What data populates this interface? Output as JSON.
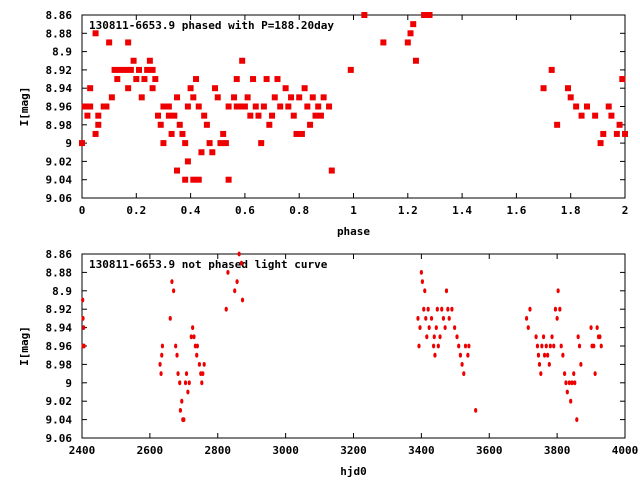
{
  "chart_data": [
    {
      "type": "scatter",
      "title": "130811-6653.9 phased with P=188.20day",
      "xlabel": "phase",
      "ylabel": "I[mag]",
      "xlim": [
        0,
        2
      ],
      "ylim": [
        9.06,
        8.86
      ],
      "y_inverted": true,
      "xticks": [
        "0",
        "0.2",
        "0.4",
        "0.6",
        "0.8",
        "1",
        "1.2",
        "1.4",
        "1.6",
        "1.8",
        "2"
      ],
      "yticks": [
        "8.86",
        "8.88",
        "8.9",
        "8.92",
        "8.94",
        "8.96",
        "8.98",
        "9",
        "9.02",
        "9.04",
        "9.06"
      ],
      "marker_color": "#ee0000",
      "grid": false,
      "points": [
        [
          0.0,
          9.0
        ],
        [
          0.01,
          8.96
        ],
        [
          0.02,
          8.97
        ],
        [
          0.03,
          8.94
        ],
        [
          0.03,
          8.96
        ],
        [
          0.05,
          8.99
        ],
        [
          0.05,
          8.88
        ],
        [
          0.06,
          8.97
        ],
        [
          0.06,
          8.98
        ],
        [
          0.08,
          8.96
        ],
        [
          0.09,
          8.96
        ],
        [
          0.1,
          8.89
        ],
        [
          0.11,
          8.95
        ],
        [
          0.12,
          8.92
        ],
        [
          0.13,
          8.93
        ],
        [
          0.14,
          8.92
        ],
        [
          0.16,
          8.92
        ],
        [
          0.17,
          8.94
        ],
        [
          0.17,
          8.89
        ],
        [
          0.18,
          8.92
        ],
        [
          0.19,
          8.91
        ],
        [
          0.2,
          8.93
        ],
        [
          0.21,
          8.92
        ],
        [
          0.22,
          8.95
        ],
        [
          0.23,
          8.93
        ],
        [
          0.24,
          8.92
        ],
        [
          0.25,
          8.91
        ],
        [
          0.26,
          8.92
        ],
        [
          0.26,
          8.94
        ],
        [
          0.27,
          8.93
        ],
        [
          0.28,
          8.97
        ],
        [
          0.29,
          8.98
        ],
        [
          0.3,
          8.96
        ],
        [
          0.3,
          9.0
        ],
        [
          0.32,
          8.96
        ],
        [
          0.32,
          8.97
        ],
        [
          0.33,
          8.99
        ],
        [
          0.34,
          8.97
        ],
        [
          0.35,
          8.95
        ],
        [
          0.35,
          9.03
        ],
        [
          0.36,
          8.98
        ],
        [
          0.37,
          8.99
        ],
        [
          0.38,
          9.04
        ],
        [
          0.38,
          9.0
        ],
        [
          0.39,
          9.02
        ],
        [
          0.39,
          8.96
        ],
        [
          0.4,
          8.94
        ],
        [
          0.41,
          8.95
        ],
        [
          0.41,
          9.04
        ],
        [
          0.42,
          8.93
        ],
        [
          0.43,
          8.96
        ],
        [
          0.43,
          9.04
        ],
        [
          0.44,
          9.01
        ],
        [
          0.45,
          8.97
        ],
        [
          0.46,
          8.98
        ],
        [
          0.47,
          9.0
        ],
        [
          0.48,
          9.01
        ],
        [
          0.49,
          8.94
        ],
        [
          0.5,
          8.95
        ],
        [
          0.51,
          9.0
        ],
        [
          0.52,
          8.99
        ],
        [
          0.53,
          9.0
        ],
        [
          0.54,
          8.96
        ],
        [
          0.54,
          9.04
        ],
        [
          0.56,
          8.95
        ],
        [
          0.57,
          8.96
        ],
        [
          0.57,
          8.93
        ],
        [
          0.58,
          8.96
        ],
        [
          0.59,
          8.91
        ],
        [
          0.6,
          8.96
        ],
        [
          0.61,
          8.95
        ],
        [
          0.62,
          8.97
        ],
        [
          0.63,
          8.93
        ],
        [
          0.64,
          8.96
        ],
        [
          0.65,
          8.97
        ],
        [
          0.66,
          9.0
        ],
        [
          0.67,
          8.96
        ],
        [
          0.68,
          8.93
        ],
        [
          0.69,
          8.98
        ],
        [
          0.7,
          8.97
        ],
        [
          0.71,
          8.95
        ],
        [
          0.72,
          8.93
        ],
        [
          0.73,
          8.96
        ],
        [
          0.75,
          8.94
        ],
        [
          0.76,
          8.96
        ],
        [
          0.77,
          8.95
        ],
        [
          0.78,
          8.97
        ],
        [
          0.79,
          8.99
        ],
        [
          0.8,
          8.95
        ],
        [
          0.81,
          8.99
        ],
        [
          0.82,
          8.94
        ],
        [
          0.83,
          8.96
        ],
        [
          0.84,
          8.98
        ],
        [
          0.85,
          8.95
        ],
        [
          0.86,
          8.97
        ],
        [
          0.87,
          8.96
        ],
        [
          0.88,
          8.97
        ],
        [
          0.89,
          8.95
        ],
        [
          0.91,
          8.96
        ],
        [
          0.92,
          9.03
        ],
        [
          0.99,
          8.92
        ],
        [
          1.04,
          8.86
        ],
        [
          1.11,
          8.89
        ],
        [
          1.2,
          8.89
        ],
        [
          1.21,
          8.88
        ],
        [
          1.22,
          8.87
        ],
        [
          1.23,
          8.91
        ],
        [
          1.26,
          8.86
        ],
        [
          1.28,
          8.86
        ],
        [
          1.7,
          8.94
        ],
        [
          1.73,
          8.92
        ],
        [
          1.75,
          8.98
        ],
        [
          1.79,
          8.94
        ],
        [
          1.8,
          8.95
        ],
        [
          1.82,
          8.96
        ],
        [
          1.84,
          8.97
        ],
        [
          1.86,
          8.96
        ],
        [
          1.89,
          8.97
        ],
        [
          1.91,
          9.0
        ],
        [
          1.92,
          8.99
        ],
        [
          1.94,
          8.96
        ],
        [
          1.95,
          8.97
        ],
        [
          1.97,
          8.99
        ],
        [
          1.98,
          8.98
        ],
        [
          1.99,
          8.93
        ],
        [
          2.0,
          8.99
        ]
      ]
    },
    {
      "type": "scatter",
      "title": "130811-6653.9 not phased light curve",
      "xlabel": "hjd0",
      "ylabel": "I[mag]",
      "xlim": [
        2400,
        4000
      ],
      "ylim": [
        9.06,
        8.86
      ],
      "y_inverted": true,
      "xticks": [
        "2400",
        "2600",
        "2800",
        "3000",
        "3200",
        "3400",
        "3600",
        "3800",
        "4000"
      ],
      "yticks": [
        "8.86",
        "8.88",
        "8.9",
        "8.92",
        "8.94",
        "8.96",
        "8.98",
        "9",
        "9.02",
        "9.04",
        "9.06"
      ],
      "marker_color": "#ee0000",
      "grid": false,
      "points": [
        [
          2402,
          8.91
        ],
        [
          2403,
          8.93
        ],
        [
          2403,
          8.96
        ],
        [
          2405,
          8.94
        ],
        [
          2406,
          8.96
        ],
        [
          2630,
          8.98
        ],
        [
          2633,
          8.99
        ],
        [
          2635,
          8.97
        ],
        [
          2637,
          8.96
        ],
        [
          2660,
          8.93
        ],
        [
          2665,
          8.89
        ],
        [
          2670,
          8.9
        ],
        [
          2676,
          8.96
        ],
        [
          2680,
          8.97
        ],
        [
          2683,
          8.99
        ],
        [
          2688,
          9.0
        ],
        [
          2690,
          9.03
        ],
        [
          2694,
          9.02
        ],
        [
          2697,
          9.04
        ],
        [
          2700,
          9.04
        ],
        [
          2705,
          9.0
        ],
        [
          2708,
          8.99
        ],
        [
          2712,
          9.01
        ],
        [
          2716,
          9.0
        ],
        [
          2722,
          8.95
        ],
        [
          2726,
          8.94
        ],
        [
          2730,
          8.95
        ],
        [
          2734,
          8.96
        ],
        [
          2738,
          8.97
        ],
        [
          2740,
          8.96
        ],
        [
          2746,
          8.98
        ],
        [
          2750,
          8.99
        ],
        [
          2753,
          9.0
        ],
        [
          2756,
          8.99
        ],
        [
          2760,
          8.98
        ],
        [
          2825,
          8.92
        ],
        [
          2830,
          8.88
        ],
        [
          2850,
          8.9
        ],
        [
          2857,
          8.89
        ],
        [
          2863,
          8.86
        ],
        [
          2870,
          8.87
        ],
        [
          2873,
          8.91
        ],
        [
          3390,
          8.93
        ],
        [
          3393,
          8.96
        ],
        [
          3396,
          8.94
        ],
        [
          3400,
          8.88
        ],
        [
          3403,
          8.89
        ],
        [
          3407,
          8.92
        ],
        [
          3410,
          8.9
        ],
        [
          3413,
          8.93
        ],
        [
          3416,
          8.95
        ],
        [
          3420,
          8.92
        ],
        [
          3423,
          8.94
        ],
        [
          3430,
          8.93
        ],
        [
          3436,
          8.96
        ],
        [
          3438,
          8.95
        ],
        [
          3440,
          8.97
        ],
        [
          3444,
          8.94
        ],
        [
          3447,
          8.92
        ],
        [
          3450,
          8.96
        ],
        [
          3455,
          8.95
        ],
        [
          3460,
          8.92
        ],
        [
          3465,
          8.93
        ],
        [
          3470,
          8.94
        ],
        [
          3474,
          8.9
        ],
        [
          3478,
          8.92
        ],
        [
          3482,
          8.93
        ],
        [
          3490,
          8.92
        ],
        [
          3498,
          8.94
        ],
        [
          3505,
          8.95
        ],
        [
          3510,
          8.96
        ],
        [
          3515,
          8.97
        ],
        [
          3520,
          8.98
        ],
        [
          3525,
          8.99
        ],
        [
          3530,
          8.96
        ],
        [
          3537,
          8.97
        ],
        [
          3540,
          8.96
        ],
        [
          3560,
          9.03
        ],
        [
          3710,
          8.93
        ],
        [
          3715,
          8.94
        ],
        [
          3720,
          8.92
        ],
        [
          3738,
          8.95
        ],
        [
          3742,
          8.96
        ],
        [
          3745,
          8.97
        ],
        [
          3748,
          8.98
        ],
        [
          3752,
          8.99
        ],
        [
          3755,
          8.96
        ],
        [
          3760,
          8.95
        ],
        [
          3763,
          8.97
        ],
        [
          3768,
          8.96
        ],
        [
          3772,
          8.97
        ],
        [
          3777,
          8.98
        ],
        [
          3780,
          8.96
        ],
        [
          3785,
          8.95
        ],
        [
          3790,
          8.96
        ],
        [
          3795,
          8.92
        ],
        [
          3800,
          8.93
        ],
        [
          3803,
          8.9
        ],
        [
          3808,
          8.92
        ],
        [
          3812,
          8.96
        ],
        [
          3817,
          8.97
        ],
        [
          3822,
          8.99
        ],
        [
          3826,
          9.0
        ],
        [
          3830,
          9.01
        ],
        [
          3836,
          9.0
        ],
        [
          3840,
          9.02
        ],
        [
          3844,
          9.0
        ],
        [
          3849,
          8.99
        ],
        [
          3852,
          9.0
        ],
        [
          3858,
          9.04
        ],
        [
          3862,
          8.95
        ],
        [
          3866,
          8.96
        ],
        [
          3870,
          8.98
        ],
        [
          3900,
          8.94
        ],
        [
          3903,
          8.96
        ],
        [
          3908,
          8.96
        ],
        [
          3912,
          8.99
        ],
        [
          3918,
          8.94
        ],
        [
          3922,
          8.95
        ],
        [
          3926,
          8.95
        ],
        [
          3930,
          8.96
        ]
      ]
    }
  ]
}
